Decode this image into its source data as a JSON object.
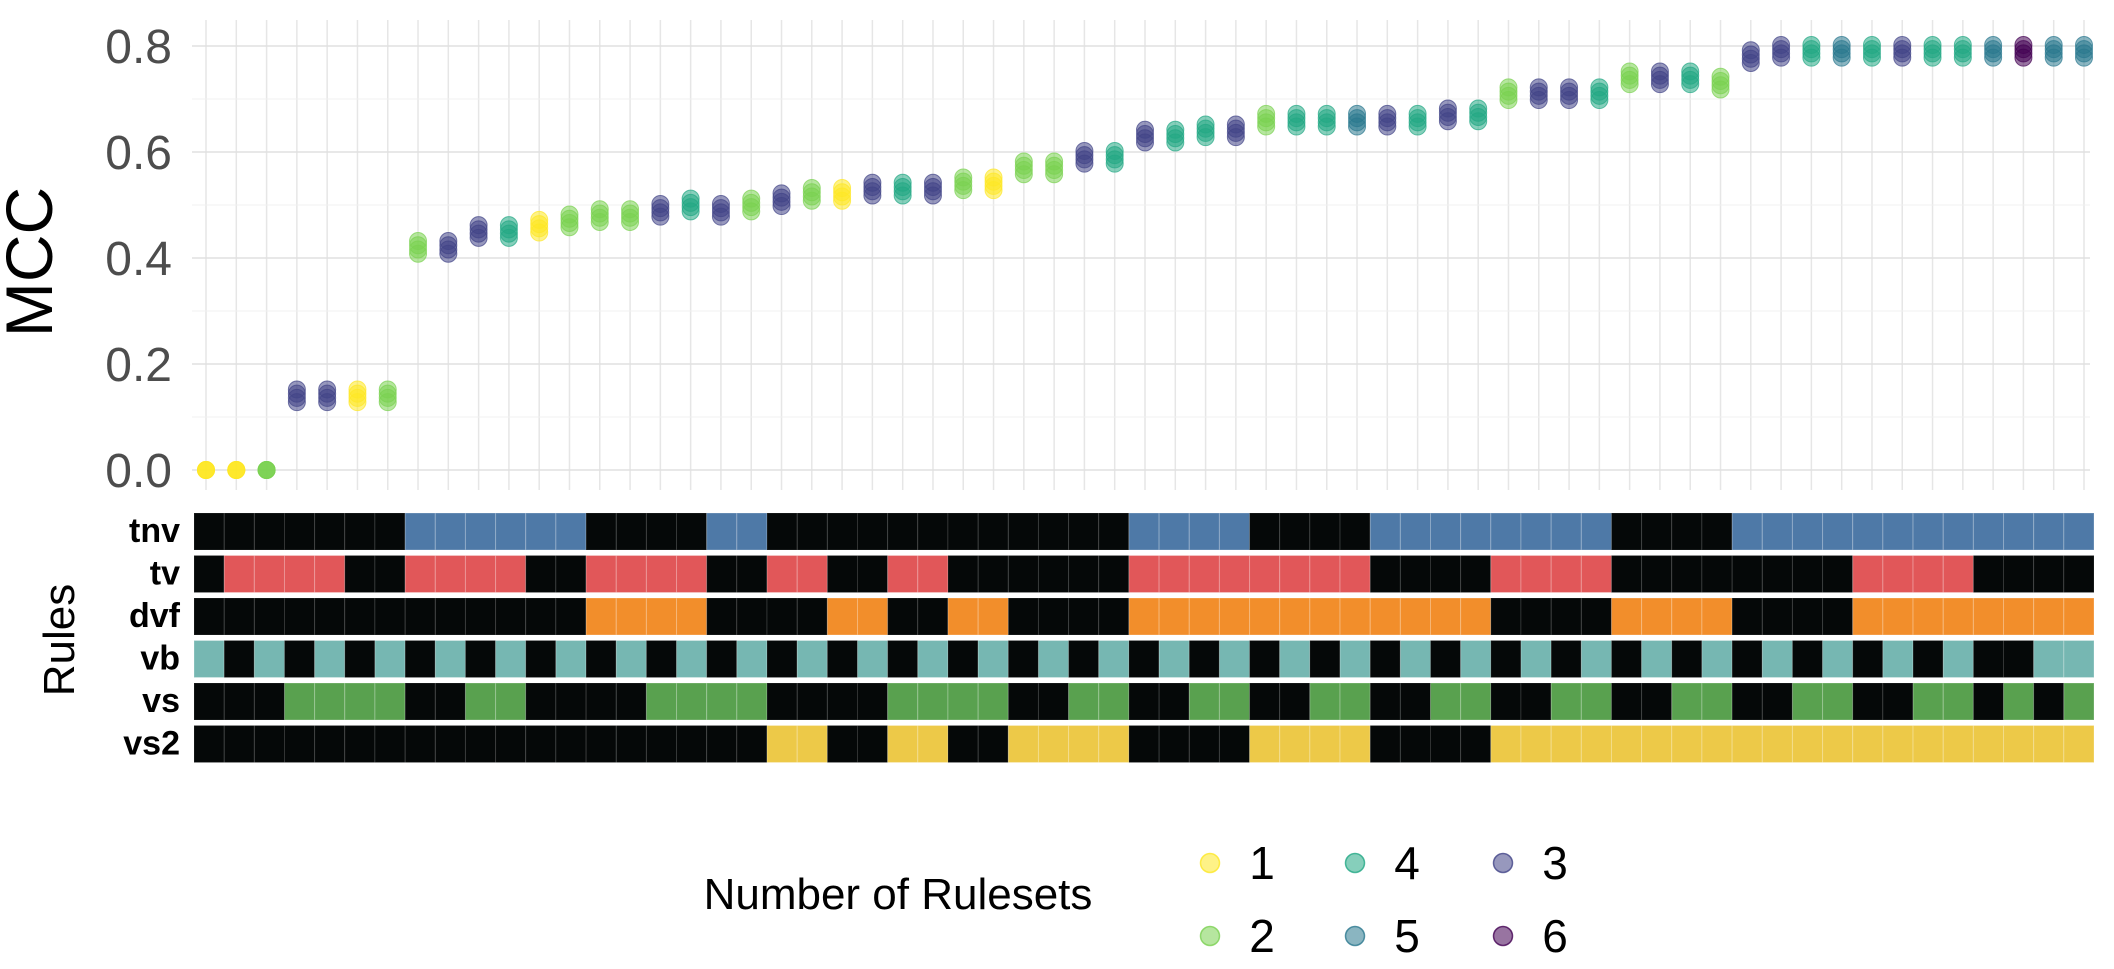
{
  "chart_data": {
    "type": "scatter",
    "ylabel": "MCC",
    "ylim": [
      0,
      0.8
    ],
    "yticks": [
      "0.0",
      "0.2",
      "0.4",
      "0.6",
      "0.8"
    ],
    "grid": true,
    "mcc_values": [
      0.0,
      0.0,
      0.0,
      0.14,
      0.14,
      0.14,
      0.14,
      0.42,
      0.42,
      0.45,
      0.45,
      0.46,
      0.47,
      0.48,
      0.48,
      0.49,
      0.5,
      0.49,
      0.5,
      0.51,
      0.52,
      0.52,
      0.53,
      0.53,
      0.53,
      0.54,
      0.54,
      0.57,
      0.57,
      0.59,
      0.59,
      0.63,
      0.63,
      0.64,
      0.64,
      0.66,
      0.66,
      0.66,
      0.66,
      0.66,
      0.66,
      0.67,
      0.67,
      0.71,
      0.71,
      0.71,
      0.71,
      0.74,
      0.74,
      0.74,
      0.73,
      0.78,
      0.79,
      0.79,
      0.79,
      0.79,
      0.79,
      0.79,
      0.79,
      0.79,
      0.79,
      0.79,
      0.79
    ],
    "num_rulesets": [
      1,
      1,
      2,
      3,
      3,
      1,
      2,
      2,
      3,
      3,
      4,
      1,
      2,
      2,
      2,
      3,
      4,
      3,
      2,
      3,
      2,
      1,
      3,
      4,
      3,
      2,
      1,
      2,
      2,
      3,
      4,
      3,
      4,
      4,
      3,
      2,
      4,
      4,
      5,
      3,
      4,
      3,
      4,
      2,
      3,
      3,
      4,
      2,
      3,
      4,
      2,
      3,
      3,
      4,
      5,
      4,
      3,
      4,
      4,
      5,
      6,
      5,
      5
    ],
    "color_scale": {
      "1": "#fde725",
      "2": "#7ad151",
      "4": "#22a884",
      "3": "#414487",
      "5": "#2a788e",
      "6": "#440154"
    },
    "rules_title": "Rules",
    "rules": [
      {
        "name": "tnv",
        "color": "#4e79a7"
      },
      {
        "name": "tv",
        "color": "#e15759"
      },
      {
        "name": "dvf",
        "color": "#f28e2b"
      },
      {
        "name": "vb",
        "color": "#76b7b2"
      },
      {
        "name": "vs",
        "color": "#59a14f"
      },
      {
        "name": "vs2",
        "color": "#edc948"
      }
    ],
    "rule_matrix": {
      "tnv": [
        0,
        0,
        0,
        0,
        0,
        0,
        0,
        1,
        1,
        1,
        1,
        1,
        1,
        0,
        0,
        0,
        0,
        1,
        1,
        0,
        0,
        0,
        0,
        0,
        0,
        0,
        0,
        0,
        0,
        0,
        0,
        1,
        1,
        1,
        1,
        0,
        0,
        0,
        0,
        1,
        1,
        1,
        1,
        1,
        1,
        1,
        1,
        0,
        0,
        0,
        0,
        1,
        1,
        1,
        1,
        1,
        1,
        1,
        1,
        1,
        1,
        1,
        1
      ],
      "tv": [
        0,
        1,
        1,
        1,
        1,
        0,
        0,
        1,
        1,
        1,
        1,
        0,
        0,
        1,
        1,
        1,
        1,
        0,
        0,
        1,
        1,
        0,
        0,
        1,
        1,
        0,
        0,
        0,
        0,
        0,
        0,
        1,
        1,
        1,
        1,
        1,
        1,
        1,
        1,
        0,
        0,
        0,
        0,
        1,
        1,
        1,
        1,
        0,
        0,
        0,
        0,
        0,
        0,
        0,
        0,
        1,
        1,
        1,
        1,
        0,
        0,
        0,
        0
      ],
      "dvf": [
        0,
        0,
        0,
        0,
        0,
        0,
        0,
        0,
        0,
        0,
        0,
        0,
        0,
        1,
        1,
        1,
        1,
        0,
        0,
        0,
        0,
        1,
        1,
        0,
        0,
        1,
        1,
        0,
        0,
        0,
        0,
        1,
        1,
        1,
        1,
        1,
        1,
        1,
        1,
        1,
        1,
        1,
        1,
        0,
        0,
        0,
        0,
        1,
        1,
        1,
        1,
        0,
        0,
        0,
        0,
        1,
        1,
        1,
        1,
        1,
        1,
        1,
        1
      ],
      "vb": [
        1,
        0,
        1,
        0,
        1,
        0,
        1,
        0,
        1,
        0,
        1,
        0,
        1,
        0,
        1,
        0,
        1,
        0,
        1,
        0,
        1,
        0,
        1,
        0,
        1,
        0,
        1,
        0,
        1,
        0,
        1,
        0,
        1,
        0,
        1,
        0,
        1,
        0,
        1,
        0,
        1,
        0,
        1,
        0,
        1,
        0,
        1,
        0,
        1,
        0,
        1,
        0,
        1,
        0,
        1,
        0,
        1,
        0,
        1,
        0,
        0,
        1,
        1
      ],
      "vs": [
        0,
        0,
        0,
        1,
        1,
        1,
        1,
        0,
        0,
        1,
        1,
        0,
        0,
        0,
        0,
        1,
        1,
        1,
        1,
        0,
        0,
        0,
        0,
        1,
        1,
        1,
        1,
        0,
        0,
        1,
        1,
        0,
        0,
        1,
        1,
        0,
        0,
        1,
        1,
        0,
        0,
        1,
        1,
        0,
        0,
        1,
        1,
        0,
        0,
        1,
        1,
        0,
        0,
        1,
        1,
        0,
        0,
        1,
        1,
        0,
        1,
        0,
        1
      ],
      "vs2": [
        0,
        0,
        0,
        0,
        0,
        0,
        0,
        0,
        0,
        0,
        0,
        0,
        0,
        0,
        0,
        0,
        0,
        0,
        0,
        1,
        1,
        0,
        0,
        1,
        1,
        0,
        0,
        1,
        1,
        1,
        1,
        0,
        0,
        0,
        0,
        1,
        1,
        1,
        1,
        0,
        0,
        0,
        0,
        1,
        1,
        1,
        1,
        1,
        1,
        1,
        1,
        1,
        1,
        1,
        1,
        1,
        1,
        1,
        1,
        1,
        1,
        1,
        1
      ]
    },
    "legend": {
      "title": "Number of Rulesets",
      "placement": "bottom",
      "entries": [
        "1",
        "4",
        "3",
        "2",
        "5",
        "6"
      ]
    }
  }
}
